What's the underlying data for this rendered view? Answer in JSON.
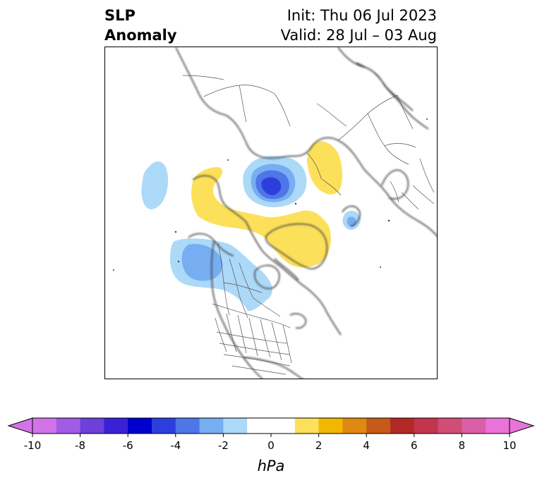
{
  "title": {
    "left_line1": "SLP",
    "left_line2": "Anomaly",
    "right_line1": "Init: Thu 06 Jul 2023",
    "right_line2": "Valid: 28 Jul – 03 Aug"
  },
  "map": {
    "projection": "north-polar-stereographic",
    "features": [
      "coastlines",
      "country-borders",
      "us-states",
      "canada-provinces"
    ],
    "anomalies": [
      {
        "name": "central-arctic-low",
        "sign": "negative",
        "peak_hpa": -5
      },
      {
        "name": "north-pacific-low",
        "sign": "negative",
        "peak_hpa": -3
      },
      {
        "name": "gulf-of-alaska-low",
        "sign": "negative",
        "peak_hpa": -2
      },
      {
        "name": "scandinavia-low",
        "sign": "negative",
        "peak_hpa": -2
      },
      {
        "name": "greenland-high",
        "sign": "positive",
        "peak_hpa": 2
      },
      {
        "name": "siberia-high",
        "sign": "positive",
        "peak_hpa": 2
      },
      {
        "name": "western-russia-high",
        "sign": "positive",
        "peak_hpa": 2
      }
    ]
  },
  "colorbar": {
    "label": "hPa",
    "min": -10,
    "max": 10,
    "step": 1,
    "ticks": [
      "-10",
      "-8",
      "-6",
      "-4",
      "-2",
      "0",
      "2",
      "4",
      "6",
      "8",
      "10"
    ],
    "extend": "both",
    "colors": [
      "#d473e9",
      "#a25be5",
      "#6d3fdb",
      "#3b20d6",
      "#0000cc",
      "#2c3fdc",
      "#4f76e7",
      "#77aef1",
      "#acd9f8",
      "#ffffff",
      "#ffffff",
      "#fce05a",
      "#f2b701",
      "#de8a10",
      "#c85a18",
      "#b22a25",
      "#c2354e",
      "#cf4d77",
      "#db5fa7",
      "#e973d8"
    ]
  }
}
